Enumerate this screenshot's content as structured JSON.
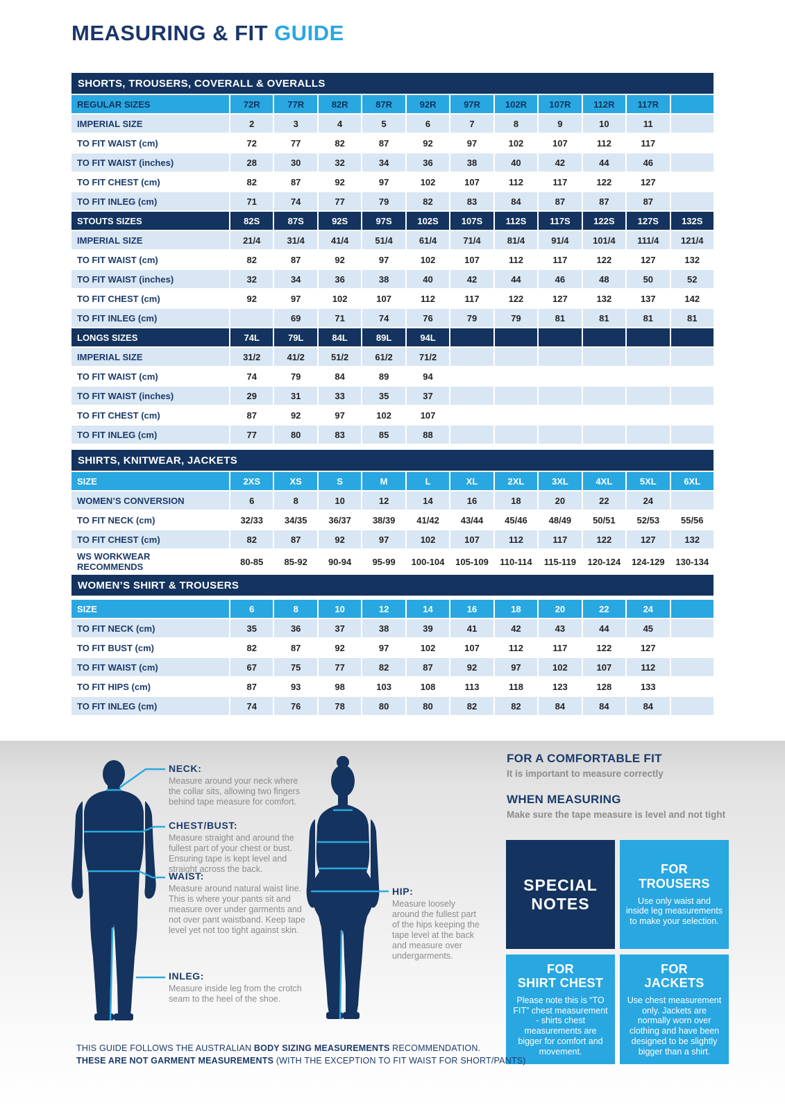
{
  "title": {
    "main": "MEASURING & FIT",
    "accent": "GUIDE"
  },
  "colors": {
    "navy": "#14335e",
    "cyan": "#29a7e0",
    "light_row": "#d9e6f3",
    "label_navy": "#1b3a6b",
    "body_gray": "#8c8c8c"
  },
  "tables": [
    {
      "band": "SHORTS, TROUSERS, COVERALL & OVERALLS",
      "rows": [
        {
          "type": "cyan-navy",
          "label": "REGULAR SIZES",
          "cells": [
            "72R",
            "77R",
            "82R",
            "87R",
            "92R",
            "97R",
            "102R",
            "107R",
            "112R",
            "117R",
            ""
          ]
        },
        {
          "type": "light",
          "label": "IMPERIAL SIZE",
          "cells": [
            "2",
            "3",
            "4",
            "5",
            "6",
            "7",
            "8",
            "9",
            "10",
            "11",
            ""
          ]
        },
        {
          "type": "white",
          "label": "TO FIT WAIST (cm)",
          "cells": [
            "72",
            "77",
            "82",
            "87",
            "92",
            "97",
            "102",
            "107",
            "112",
            "117",
            ""
          ]
        },
        {
          "type": "light",
          "label": "TO FIT WAIST (inches)",
          "cells": [
            "28",
            "30",
            "32",
            "34",
            "36",
            "38",
            "40",
            "42",
            "44",
            "46",
            ""
          ]
        },
        {
          "type": "white",
          "label": "TO FIT CHEST (cm)",
          "cells": [
            "82",
            "87",
            "92",
            "97",
            "102",
            "107",
            "112",
            "117",
            "122",
            "127",
            ""
          ]
        },
        {
          "type": "light",
          "label": "TO FIT INLEG (cm)",
          "cells": [
            "71",
            "74",
            "77",
            "79",
            "82",
            "83",
            "84",
            "87",
            "87",
            "87",
            ""
          ]
        },
        {
          "type": "navy",
          "label": "STOUTS SIZES",
          "cells": [
            "82S",
            "87S",
            "92S",
            "97S",
            "102S",
            "107S",
            "112S",
            "117S",
            "122S",
            "127S",
            "132S"
          ]
        },
        {
          "type": "light",
          "label": "IMPERIAL SIZE",
          "cells": [
            "21/4",
            "31/4",
            "41/4",
            "51/4",
            "61/4",
            "71/4",
            "81/4",
            "91/4",
            "101/4",
            "111/4",
            "121/4"
          ]
        },
        {
          "type": "white",
          "label": "TO FIT WAIST (cm)",
          "cells": [
            "82",
            "87",
            "92",
            "97",
            "102",
            "107",
            "112",
            "117",
            "122",
            "127",
            "132"
          ]
        },
        {
          "type": "light",
          "label": "TO FIT WAIST (inches)",
          "cells": [
            "32",
            "34",
            "36",
            "38",
            "40",
            "42",
            "44",
            "46",
            "48",
            "50",
            "52"
          ]
        },
        {
          "type": "white",
          "label": "TO FIT CHEST (cm)",
          "cells": [
            "92",
            "97",
            "102",
            "107",
            "112",
            "117",
            "122",
            "127",
            "132",
            "137",
            "142"
          ]
        },
        {
          "type": "light",
          "label": "TO FIT INLEG (cm)",
          "cells": [
            "",
            "69",
            "71",
            "74",
            "76",
            "79",
            "79",
            "81",
            "81",
            "81",
            "81"
          ]
        },
        {
          "type": "navy",
          "label": "LONGS SIZES",
          "cells": [
            "74L",
            "79L",
            "84L",
            "89L",
            "94L",
            "",
            "",
            "",
            "",
            "",
            ""
          ]
        },
        {
          "type": "light",
          "label": "IMPERIAL SIZE",
          "cells": [
            "31/2",
            "41/2",
            "51/2",
            "61/2",
            "71/2",
            "",
            "",
            "",
            "",
            "",
            ""
          ]
        },
        {
          "type": "white",
          "label": "TO FIT WAIST (cm)",
          "cells": [
            "74",
            "79",
            "84",
            "89",
            "94",
            "",
            "",
            "",
            "",
            "",
            ""
          ]
        },
        {
          "type": "light",
          "label": "TO FIT WAIST (inches)",
          "cells": [
            "29",
            "31",
            "33",
            "35",
            "37",
            "",
            "",
            "",
            "",
            "",
            ""
          ]
        },
        {
          "type": "white",
          "label": "TO FIT CHEST (cm)",
          "cells": [
            "87",
            "92",
            "97",
            "102",
            "107",
            "",
            "",
            "",
            "",
            "",
            ""
          ]
        },
        {
          "type": "light",
          "label": "TO FIT INLEG (cm)",
          "cells": [
            "77",
            "80",
            "83",
            "85",
            "88",
            "",
            "",
            "",
            "",
            "",
            ""
          ]
        }
      ]
    },
    {
      "band": "SHIRTS, KNITWEAR, JACKETS",
      "rows": [
        {
          "type": "cyan-white",
          "label": "SIZE",
          "cells": [
            "2XS",
            "XS",
            "S",
            "M",
            "L",
            "XL",
            "2XL",
            "3XL",
            "4XL",
            "5XL",
            "6XL"
          ]
        },
        {
          "type": "light",
          "label": "WOMEN’S CONVERSION",
          "cells": [
            "6",
            "8",
            "10",
            "12",
            "14",
            "16",
            "18",
            "20",
            "22",
            "24",
            ""
          ]
        },
        {
          "type": "white",
          "label": "TO FIT NECK (cm)",
          "cells": [
            "32/33",
            "34/35",
            "36/37",
            "38/39",
            "41/42",
            "43/44",
            "45/46",
            "48/49",
            "50/51",
            "52/53",
            "55/56"
          ]
        },
        {
          "type": "light",
          "label": "TO FIT CHEST (cm)",
          "cells": [
            "82",
            "87",
            "92",
            "97",
            "102",
            "107",
            "112",
            "117",
            "122",
            "127",
            "132"
          ]
        },
        {
          "type": "white",
          "label": "WS WORKWEAR\nRECOMMENDS",
          "tall": true,
          "cells": [
            "80-85",
            "85-92",
            "90-94",
            "95-99",
            "100-104",
            "105-109",
            "110-114",
            "115-119",
            "120-124",
            "124-129",
            "130-134"
          ]
        }
      ]
    },
    {
      "band": "WOMEN’S SHIRT & TROUSERS",
      "gapAfterBand": true,
      "rows": [
        {
          "type": "cyan-white",
          "label": "SIZE",
          "cells": [
            "6",
            "8",
            "10",
            "12",
            "14",
            "16",
            "18",
            "20",
            "22",
            "24",
            ""
          ]
        },
        {
          "type": "light",
          "label": "TO FIT NECK (cm)",
          "cells": [
            "35",
            "36",
            "37",
            "38",
            "39",
            "41",
            "42",
            "43",
            "44",
            "45",
            ""
          ]
        },
        {
          "type": "white",
          "label": "TO FIT BUST (cm)",
          "cells": [
            "82",
            "87",
            "92",
            "97",
            "102",
            "107",
            "112",
            "117",
            "122",
            "127",
            ""
          ]
        },
        {
          "type": "light",
          "label": "TO FIT WAIST (cm)",
          "cells": [
            "67",
            "75",
            "77",
            "82",
            "87",
            "92",
            "97",
            "102",
            "107",
            "112",
            ""
          ]
        },
        {
          "type": "white",
          "label": "TO FIT HIPS (cm)",
          "cells": [
            "87",
            "93",
            "98",
            "103",
            "108",
            "113",
            "118",
            "123",
            "128",
            "133",
            ""
          ]
        },
        {
          "type": "light",
          "label": "TO FIT INLEG (cm)",
          "cells": [
            "74",
            "76",
            "78",
            "80",
            "80",
            "82",
            "82",
            "84",
            "84",
            "84",
            ""
          ]
        }
      ]
    }
  ],
  "measuring": {
    "neck": {
      "heading": "NECK:",
      "body": "Measure around your neck where the collar sits, allowing two fingers behind tape measure for comfort."
    },
    "chest": {
      "heading": "CHEST/BUST:",
      "body": "Measure straight and around the fullest part of your chest or bust. Ensuring tape is kept level and straight across the back."
    },
    "waist": {
      "heading": "WAIST:",
      "body": "Measure around natural waist line. This is where your pants sit and measure over under garments and not over pant waistband. Keep tape level yet not too tight against skin."
    },
    "inleg": {
      "heading": "INLEG:",
      "body": "Measure inside leg from the crotch seam to the heel of the shoe."
    },
    "hip": {
      "heading": "HIP:",
      "body": "Measure loosely around the fullest part of the hips keeping the tape level at the back and measure over undergarments."
    }
  },
  "fit_notes": {
    "comfortable_heading": "FOR A COMFORTABLE FIT",
    "comfortable_body": "It is important to measure correctly",
    "measuring_heading": "WHEN MEASURING",
    "measuring_body": "Make sure the tape measure is level and not tight",
    "boxes": [
      {
        "style": "navy",
        "title": "SPECIAL\nNOTES",
        "body": ""
      },
      {
        "style": "cyan",
        "title": "FOR\nTROUSERS",
        "body": "Use only waist and inside leg measurements to make your selection."
      },
      {
        "style": "cyan",
        "title": "FOR\nSHIRT CHEST",
        "body": "Please note this is “TO FIT” chest measurement - shirts chest measurements are bigger for comfort and movement."
      },
      {
        "style": "cyan",
        "title": "FOR\nJACKETS",
        "body": "Use chest measurement only. Jackets are normally worn over clothing and have been designed to be slightly bigger than a shirt."
      }
    ]
  },
  "footer": {
    "line1": [
      {
        "text": "THIS GUIDE FOLLOWS THE AUSTRALIAN ",
        "bold": false
      },
      {
        "text": "BODY SIZING MEASUREMENTS",
        "bold": true
      },
      {
        "text": " RECOMMENDATION.",
        "bold": false
      }
    ],
    "line2": [
      {
        "text": "THESE ARE NOT GARMENT MEASUREMENTS",
        "bold": true
      },
      {
        "text": " (WITH THE EXCEPTION TO FIT WAIST FOR SHORT/PANTS)",
        "bold": false
      }
    ]
  }
}
